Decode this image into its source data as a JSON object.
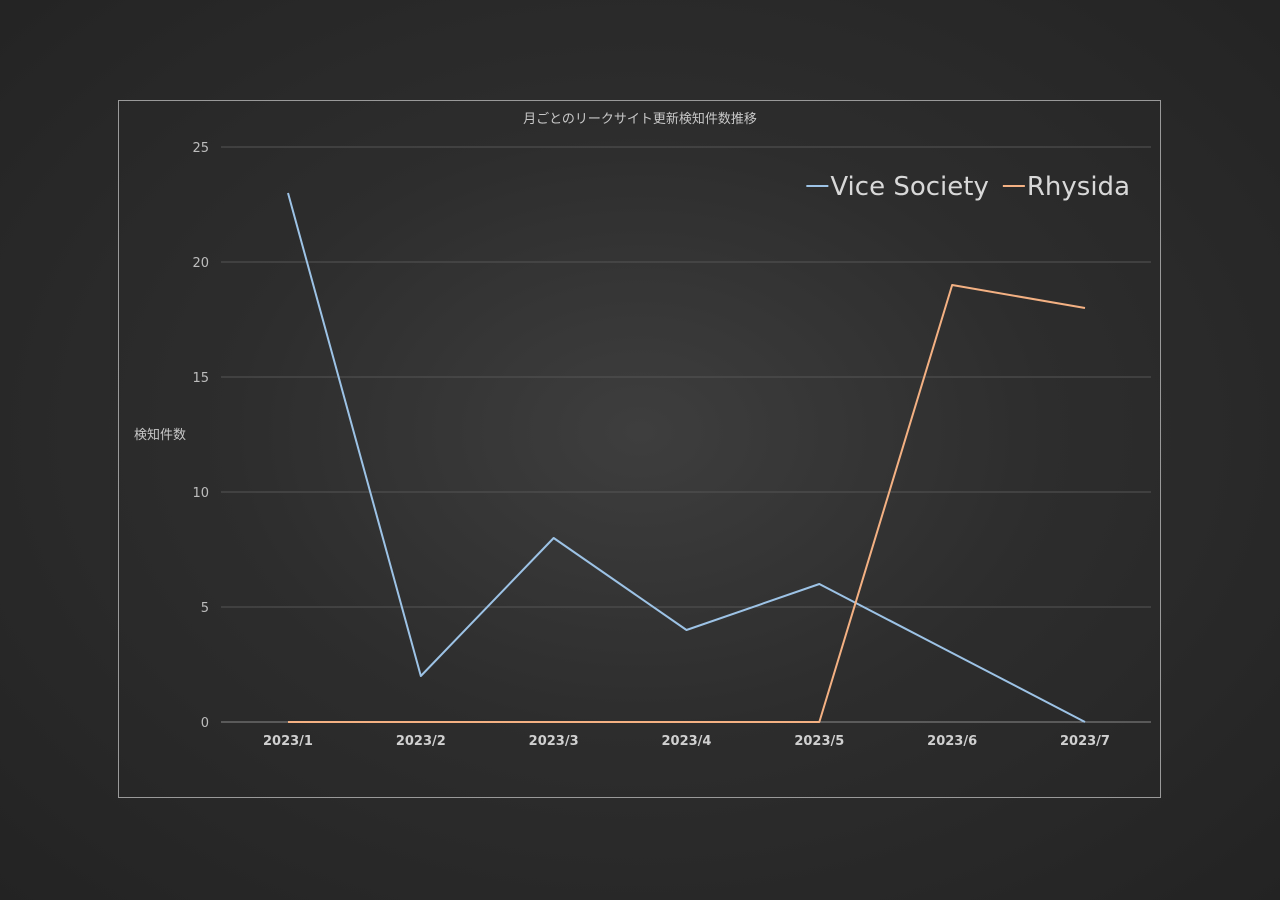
{
  "chart_data": {
    "type": "line",
    "title": "月ごとのリークサイト更新検知件数推移",
    "xlabel": "",
    "ylabel": "検知件数",
    "categories": [
      "2023/1",
      "2023/2",
      "2023/3",
      "2023/4",
      "2023/5",
      "2023/6",
      "2023/7"
    ],
    "ylim": [
      0,
      25
    ],
    "yticks": [
      0,
      5,
      10,
      15,
      20,
      25
    ],
    "grid": true,
    "legend_position": "top-right",
    "series": [
      {
        "name": "Vice Society",
        "color": "#9dc3e6",
        "values": [
          23,
          2,
          8,
          4,
          6,
          3,
          0
        ]
      },
      {
        "name": "Rhysida",
        "color": "#f4b183",
        "values": [
          0,
          0,
          0,
          0,
          0,
          19,
          18
        ]
      }
    ]
  }
}
